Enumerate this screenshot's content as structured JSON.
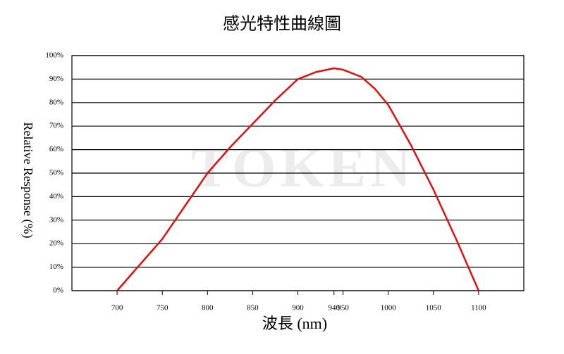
{
  "chart_data": {
    "type": "line",
    "title": "感光特性曲線圖",
    "x_label": "波長 (nm)",
    "y_label": "Relative Response (%)",
    "watermark": "TOKEN",
    "x": [
      700,
      725,
      750,
      775,
      800,
      825,
      850,
      875,
      900,
      920,
      940,
      950,
      970,
      985,
      1000,
      1025,
      1050,
      1075,
      1100
    ],
    "series": [
      {
        "name": "Relative Response",
        "color": "#e01010",
        "values": [
          0,
          11,
          22,
          36,
          50,
          61,
          71,
          81,
          90,
          93,
          94.6,
          94,
          91,
          86,
          79,
          62,
          43,
          22,
          0
        ]
      }
    ],
    "xlim": [
      650,
      1150
    ],
    "xticks": [
      700,
      750,
      800,
      850,
      900,
      940,
      950,
      1000,
      1050,
      1100
    ],
    "ylim": [
      0,
      100
    ],
    "yticks": [
      {
        "value": 0,
        "label": "0%"
      },
      {
        "value": 10,
        "label": "10%"
      },
      {
        "value": 20,
        "label": "20%"
      },
      {
        "value": 30,
        "label": "30%"
      },
      {
        "value": 40,
        "label": "40%"
      },
      {
        "value": 50,
        "label": "50%"
      },
      {
        "value": 60,
        "label": "60%"
      },
      {
        "value": 70,
        "label": "70%"
      },
      {
        "value": 80,
        "label": "80%"
      },
      {
        "value": 90,
        "label": "90%"
      },
      {
        "value": 100,
        "label": "100%"
      }
    ],
    "grid": true
  }
}
